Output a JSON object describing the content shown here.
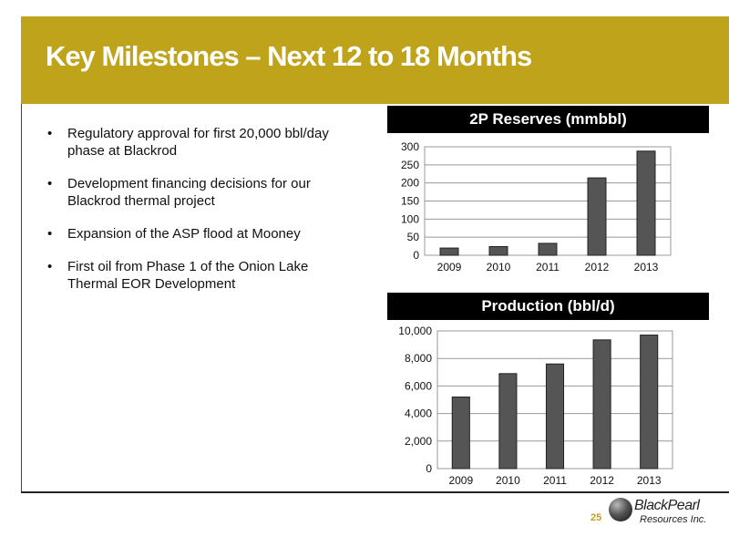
{
  "slide": {
    "title": "Key Milestones – Next 12 to 18 Months",
    "page_number": "25",
    "bullet_symbol": "•",
    "bullets": [
      "Regulatory approval for first 20,000 bbl/day phase at Blackrod",
      "Development financing decisions for our Blackrod thermal project",
      "Expansion of the ASP flood at Mooney",
      "First oil from Phase 1 of the Onion Lake Thermal EOR Development"
    ]
  },
  "logo": {
    "name": "BlackPearl",
    "subtitle": "Resources Inc."
  },
  "colors": {
    "header": "#bfa31b",
    "bar": "#555555",
    "page_number": "#c0a020"
  },
  "chart_data": [
    {
      "type": "bar",
      "title": "2P Reserves (mmbbl)",
      "categories": [
        "2009",
        "2010",
        "2011",
        "2012",
        "2013"
      ],
      "values": [
        20,
        24,
        33,
        214,
        288
      ],
      "ylim": [
        0,
        300
      ],
      "yticks": [
        0,
        50,
        100,
        150,
        200,
        250,
        300
      ],
      "ytick_labels": [
        "0",
        "50",
        "100",
        "150",
        "200",
        "250",
        "300"
      ],
      "xlabel": "",
      "ylabel": "",
      "grid": true
    },
    {
      "type": "bar",
      "title": "Production (bbl/d)",
      "categories": [
        "2009",
        "2010",
        "2011",
        "2012",
        "2013"
      ],
      "values": [
        5200,
        6900,
        7600,
        9350,
        9700
      ],
      "ylim": [
        0,
        10000
      ],
      "yticks": [
        0,
        2000,
        4000,
        6000,
        8000,
        10000
      ],
      "ytick_labels": [
        "0",
        "2,000",
        "4,000",
        "6,000",
        "8,000",
        "10,000"
      ],
      "xlabel": "",
      "ylabel": "",
      "grid": true
    }
  ]
}
